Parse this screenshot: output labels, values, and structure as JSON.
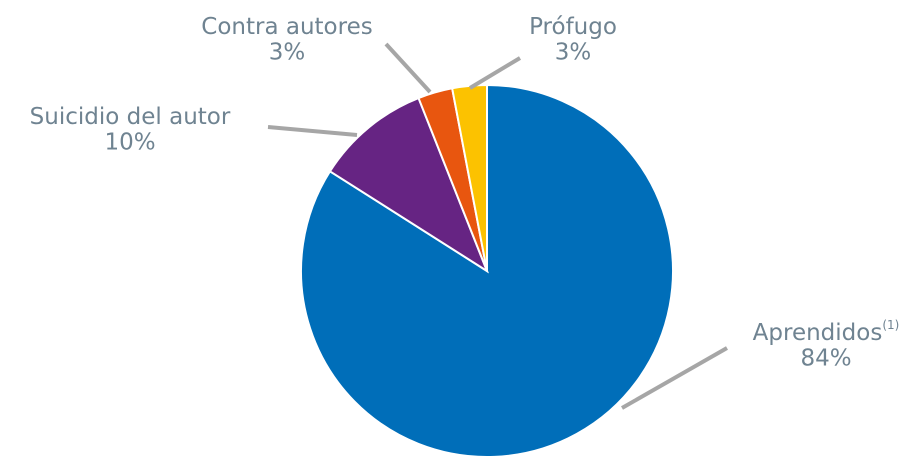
{
  "chart_data": {
    "type": "pie",
    "categories": [
      "Aprendidos",
      "Suicidio del autor",
      "Contra autores",
      "Prófugo"
    ],
    "category_notes": [
      "(1)",
      null,
      null,
      null
    ],
    "values": [
      84,
      10,
      3,
      3
    ],
    "value_labels": [
      "84%",
      "10%",
      "3%",
      "3%"
    ],
    "colors": [
      "#006eb9",
      "#662483",
      "#e8560f",
      "#fcc200"
    ]
  }
}
